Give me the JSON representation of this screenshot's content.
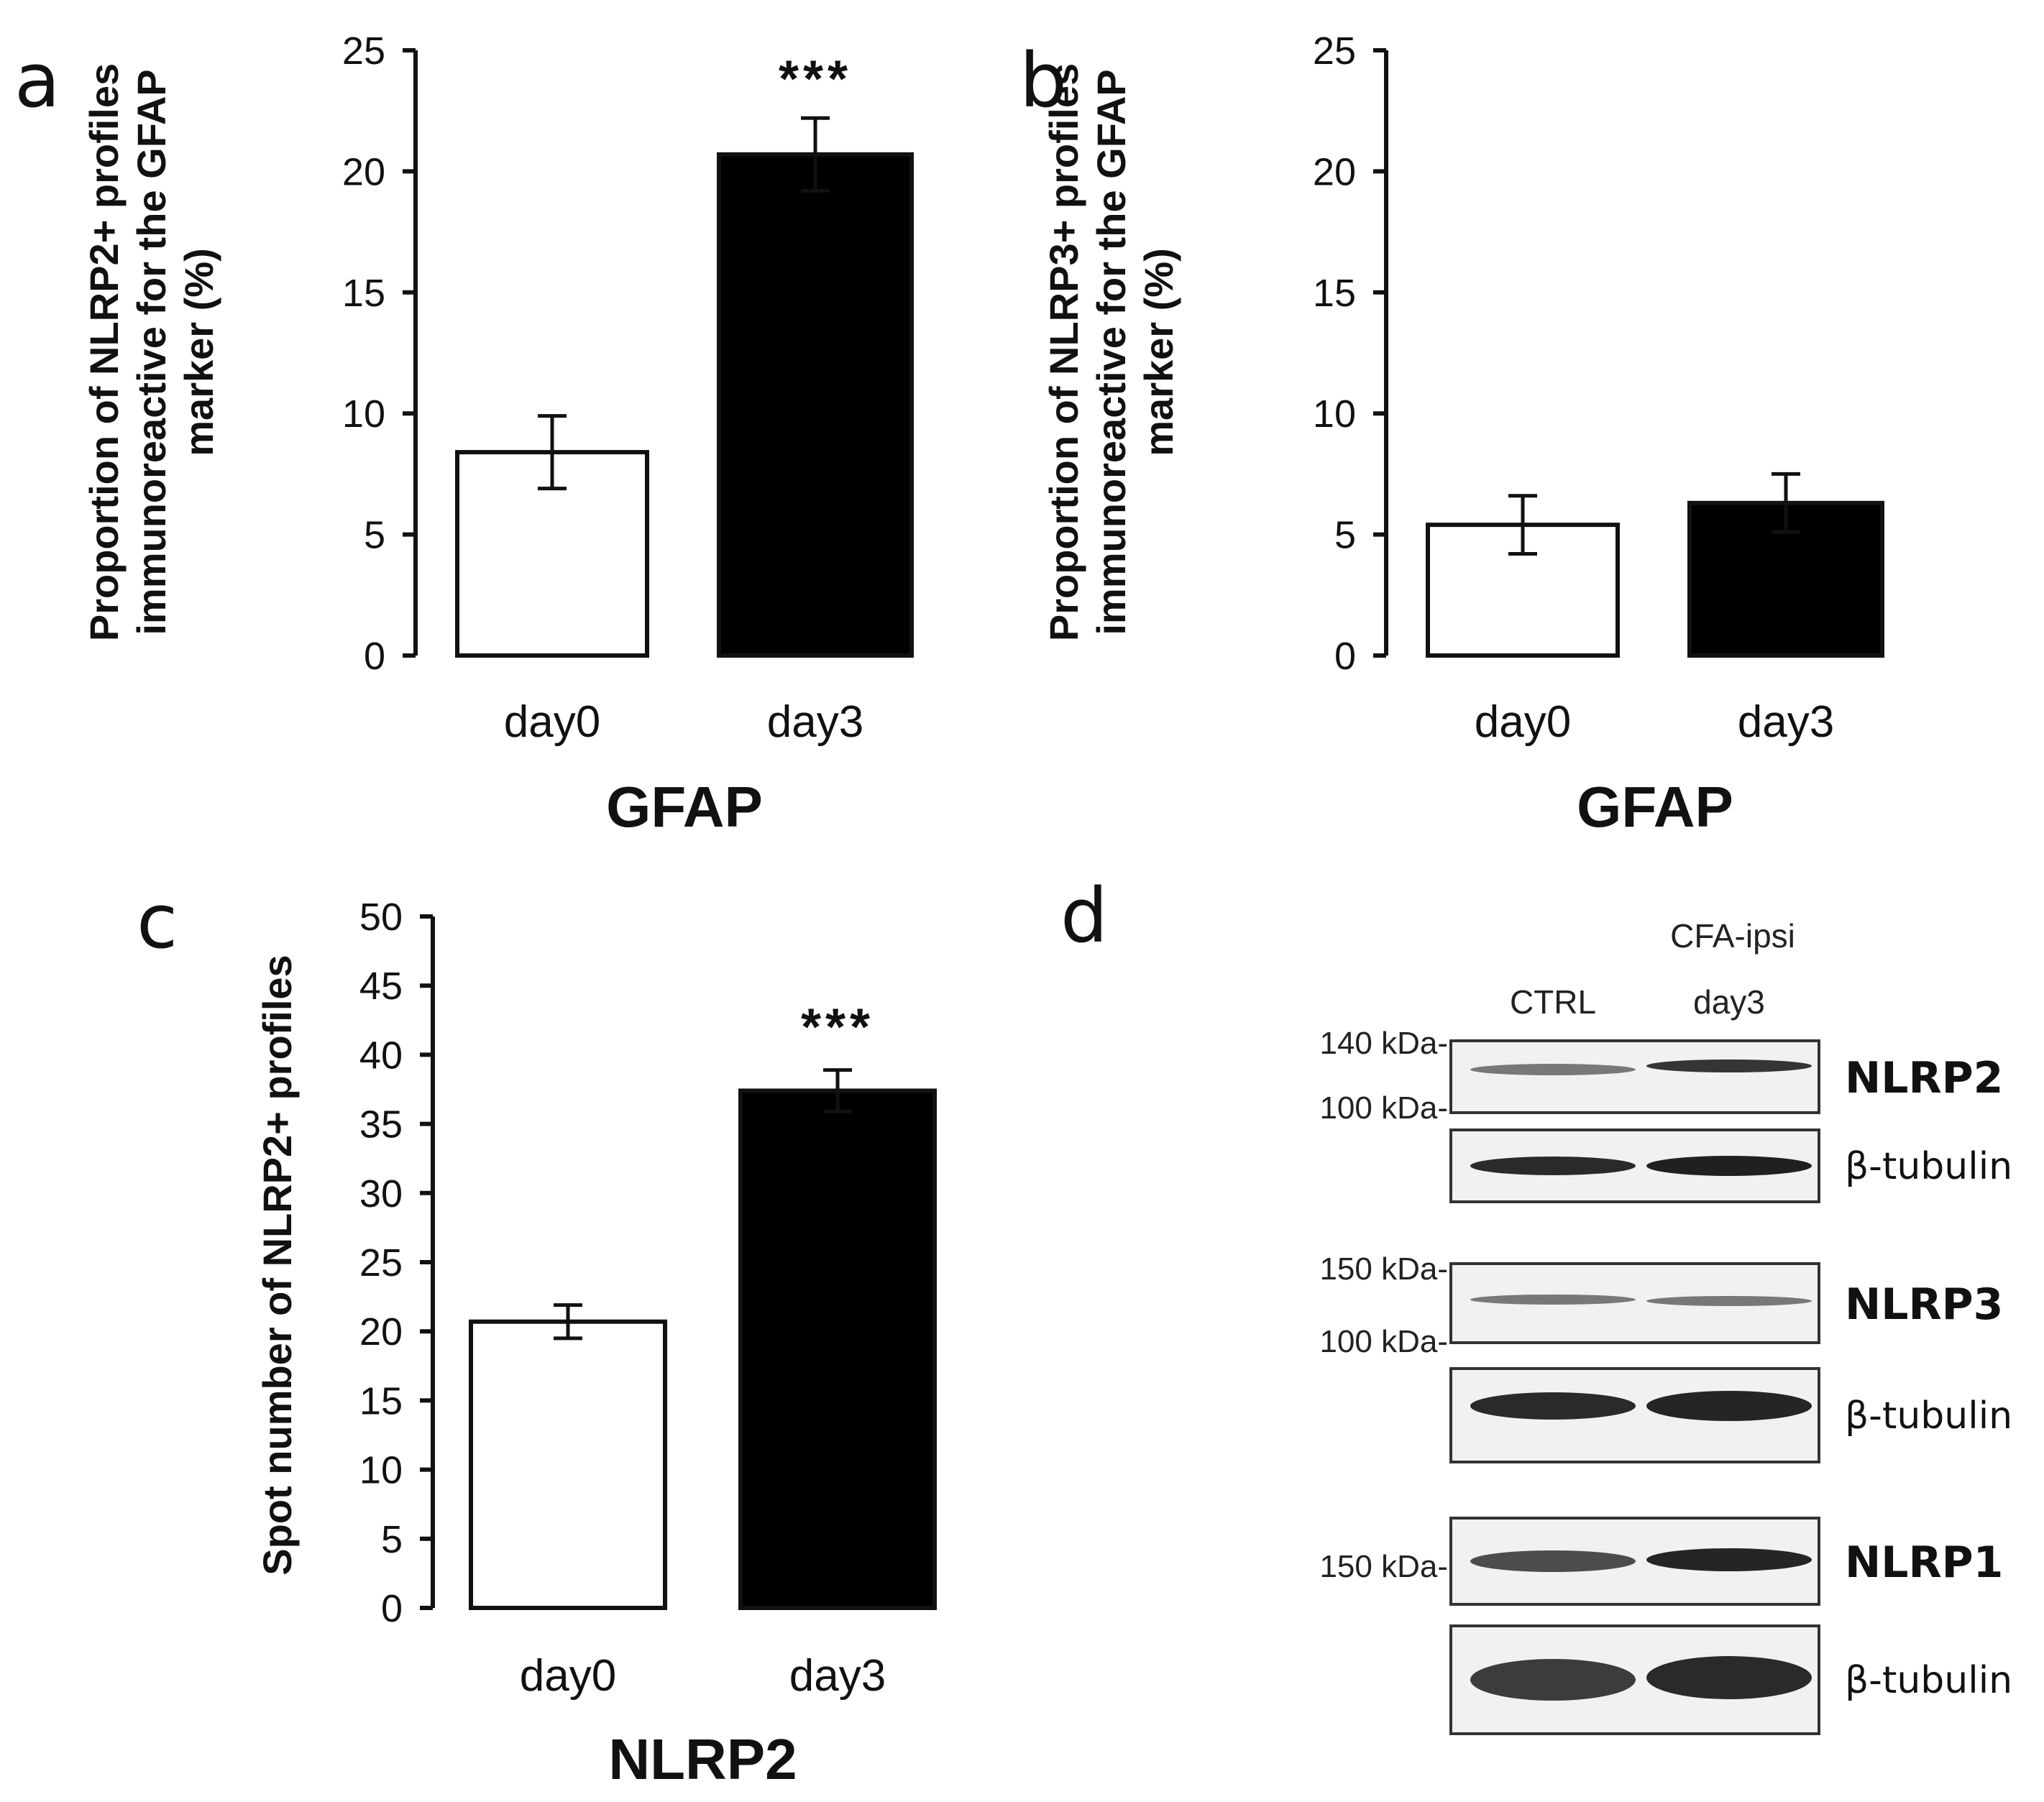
{
  "chart_data": [
    {
      "panel": "a",
      "type": "bar",
      "categories": [
        "day0",
        "day3"
      ],
      "values": [
        8.4,
        20.7
      ],
      "errors": [
        1.5,
        1.5
      ],
      "significance": [
        "",
        "***"
      ],
      "bar_colors": [
        "#ffffff",
        "#000000"
      ],
      "ylim": [
        0,
        25
      ],
      "yticks": [
        "0",
        "5",
        "10",
        "15",
        "20",
        "25"
      ],
      "xlabel": "GFAP",
      "ylabel_lines": [
        "Proportion of NLRP2+ profiles",
        "immunoreactive for the GFAP",
        "marker (%)"
      ]
    },
    {
      "panel": "b",
      "type": "bar",
      "categories": [
        "day0",
        "day3"
      ],
      "values": [
        5.4,
        6.3
      ],
      "errors": [
        1.2,
        1.2
      ],
      "significance": [
        "",
        ""
      ],
      "bar_colors": [
        "#ffffff",
        "#000000"
      ],
      "ylim": [
        0,
        25
      ],
      "yticks": [
        "0",
        "5",
        "10",
        "15",
        "20",
        "25"
      ],
      "xlabel": "GFAP",
      "ylabel_lines": [
        "Proportion of NLRP3+ profiles",
        "immunoreactive for the GFAP",
        "marker (%)"
      ]
    },
    {
      "panel": "c",
      "type": "bar",
      "categories": [
        "day0",
        "day3"
      ],
      "values": [
        20.7,
        37.4
      ],
      "errors": [
        1.2,
        1.5
      ],
      "significance": [
        "",
        "***"
      ],
      "bar_colors": [
        "#ffffff",
        "#000000"
      ],
      "ylim": [
        0,
        50
      ],
      "yticks": [
        "0",
        "5",
        "10",
        "15",
        "20",
        "25",
        "30",
        "35",
        "40",
        "45",
        "50"
      ],
      "xlabel": "NLRP2",
      "ylabel_lines": [
        "Spot number of NLRP2+ profiles"
      ]
    }
  ],
  "blot": {
    "panel": "d",
    "group_label": "CFA-ipsi",
    "lanes": [
      "CTRL",
      "day3"
    ],
    "strips": [
      {
        "protein": "NLRP2",
        "markers": [
          "140 kDa-",
          "100 kDa-"
        ]
      },
      {
        "protein": "β-tubulin",
        "markers": []
      },
      {
        "protein": "NLRP3",
        "markers": [
          "150 kDa-",
          "100 kDa-"
        ]
      },
      {
        "protein": "β-tubulin",
        "markers": []
      },
      {
        "protein": "NLRP1",
        "markers": [
          "150 kDa-"
        ]
      },
      {
        "protein": "β-tubulin",
        "markers": []
      }
    ]
  }
}
